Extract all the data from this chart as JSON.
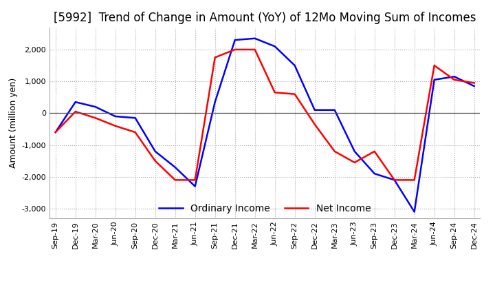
{
  "title": "[5992]  Trend of Change in Amount (YoY) of 12Mo Moving Sum of Incomes",
  "ylabel": "Amount (million yen)",
  "x_labels": [
    "Sep-19",
    "Dec-19",
    "Mar-20",
    "Jun-20",
    "Sep-20",
    "Dec-20",
    "Mar-21",
    "Jun-21",
    "Sep-21",
    "Dec-21",
    "Mar-22",
    "Jun-22",
    "Sep-22",
    "Dec-22",
    "Mar-23",
    "Jun-23",
    "Sep-23",
    "Dec-23",
    "Mar-24",
    "Jun-24",
    "Sep-24",
    "Dec-24"
  ],
  "ordinary_income": [
    -600,
    350,
    200,
    -100,
    -150,
    -1200,
    -1700,
    -2300,
    350,
    2300,
    2350,
    2100,
    1500,
    100,
    100,
    -1200,
    -1900,
    -2100,
    -3100,
    1050,
    1150,
    850
  ],
  "net_income": [
    -600,
    50,
    -150,
    -400,
    -600,
    -1500,
    -2100,
    -2100,
    1750,
    2000,
    2000,
    650,
    600,
    -350,
    -1200,
    -1550,
    -1200,
    -2100,
    -2100,
    1500,
    1050,
    950
  ],
  "ordinary_income_color": "#0000FF",
  "net_income_color": "#FF0000",
  "ylim": [
    -3300,
    2700
  ],
  "yticks": [
    -3000,
    -2000,
    -1000,
    0,
    1000,
    2000
  ],
  "background_color": "#FFFFFF",
  "grid_color": "#AAAAAA",
  "title_fontsize": 12,
  "axis_fontsize": 9,
  "tick_fontsize": 8,
  "linewidth": 1.8
}
